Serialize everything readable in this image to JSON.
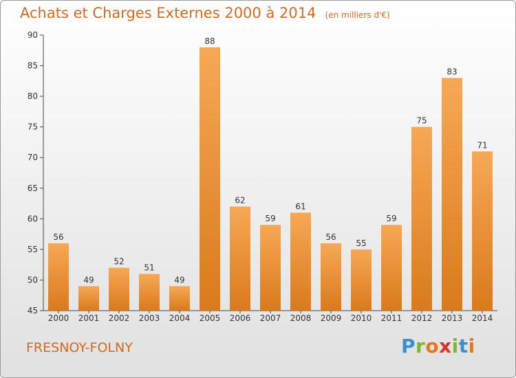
{
  "header": {
    "title": "Achats et Charges Externes 2000 à 2014",
    "unit": "(en milliers d'€)"
  },
  "footer": {
    "commune": "FRESNOY-FOLNY",
    "logo_text": "Proxiti"
  },
  "colors": {
    "bar_light": "#f7a855",
    "bar_dark": "#d97a1c",
    "title": "#d2691e",
    "logo": [
      "#3a8fd0",
      "#7cb82f",
      "#e8751a",
      "#d9342b",
      "#7cb82f",
      "#3a8fd0",
      "#e8751a"
    ]
  },
  "chart_data": {
    "type": "bar",
    "title": "Achats et Charges Externes 2000 à 2014",
    "subtitle": "(en milliers d'€)",
    "categories": [
      "2000",
      "2001",
      "2002",
      "2003",
      "2004",
      "2005",
      "2006",
      "2007",
      "2008",
      "2009",
      "2010",
      "2011",
      "2012",
      "2013",
      "2014"
    ],
    "values": [
      56,
      49,
      52,
      51,
      49,
      88,
      62,
      59,
      61,
      56,
      55,
      59,
      75,
      83,
      71
    ],
    "ylim": [
      45,
      90
    ],
    "yticks": [
      45,
      50,
      55,
      60,
      65,
      70,
      75,
      80,
      85,
      90
    ],
    "grid": false,
    "legend": "none"
  }
}
